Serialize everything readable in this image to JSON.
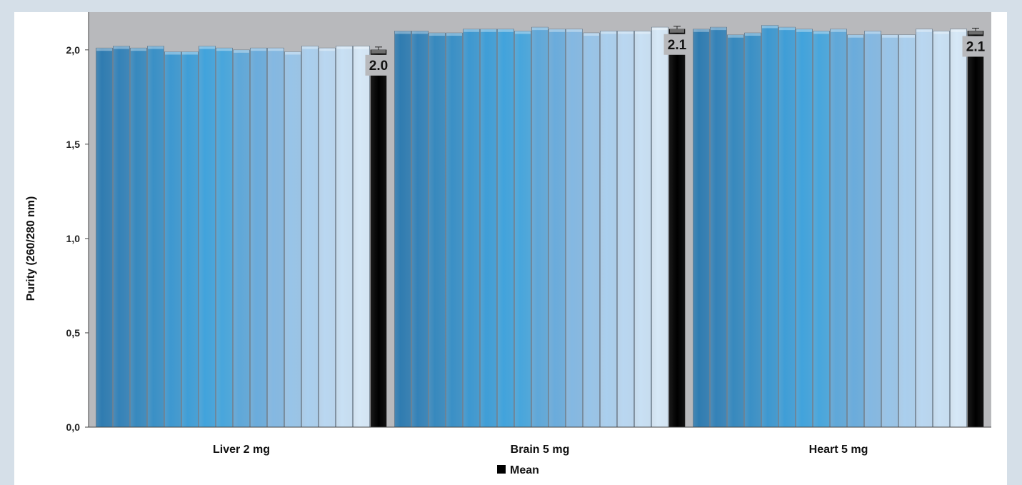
{
  "chart_data": {
    "type": "bar",
    "ylabel": "Purity (260/280 nm)",
    "ylim": [
      0,
      2.2
    ],
    "yticks": [
      "0,0",
      "0,5",
      "1,0",
      "1,5",
      "2,0"
    ],
    "ytick_values": [
      0,
      0.5,
      1.0,
      1.5,
      2.0
    ],
    "legend": {
      "label": "Mean",
      "placement": "bottom-center",
      "color": "#000000"
    },
    "plot_background": "#b8b9bc",
    "groups": [
      {
        "name": "Liver 2 mg",
        "values": [
          2.01,
          2.02,
          2.01,
          2.02,
          1.99,
          1.99,
          2.02,
          2.01,
          2.0,
          2.01,
          2.01,
          1.99,
          2.02,
          2.01,
          2.02,
          2.02
        ],
        "mean": 2.0,
        "mean_label": "2.0"
      },
      {
        "name": "Brain 5 mg",
        "values": [
          2.1,
          2.1,
          2.09,
          2.09,
          2.11,
          2.11,
          2.11,
          2.1,
          2.12,
          2.11,
          2.11,
          2.09,
          2.1,
          2.1,
          2.1,
          2.12
        ],
        "mean": 2.11,
        "mean_label": "2.1"
      },
      {
        "name": "Heart 5 mg",
        "values": [
          2.11,
          2.12,
          2.08,
          2.09,
          2.13,
          2.12,
          2.11,
          2.1,
          2.11,
          2.08,
          2.1,
          2.08,
          2.08,
          2.11,
          2.1,
          2.11
        ],
        "mean": 2.1,
        "mean_label": "2.1"
      }
    ],
    "bar_colors": [
      "#2f7cb1",
      "#3482b8",
      "#3789be",
      "#3a90c6",
      "#3d98d0",
      "#3f9ed7",
      "#41a3dc",
      "#48a6dc",
      "#5fa8d9",
      "#6aacdc",
      "#84b8e2",
      "#98c4e8",
      "#aacfee",
      "#b9d7f1",
      "#c8e0f4",
      "#d6e8f7"
    ]
  }
}
